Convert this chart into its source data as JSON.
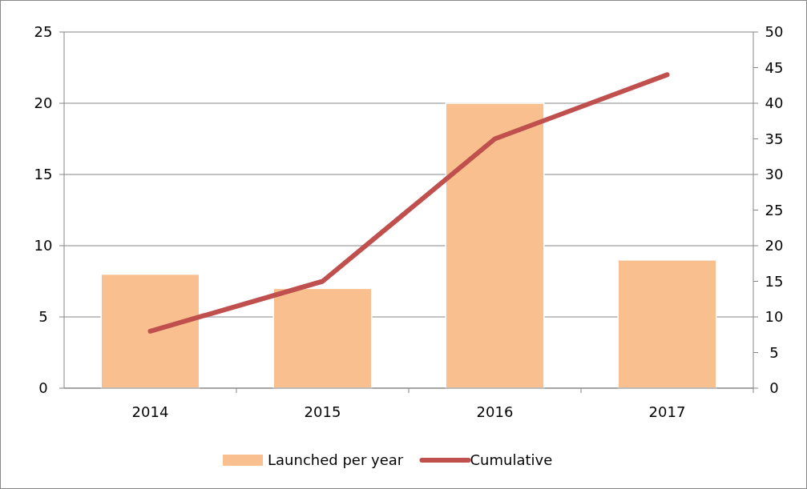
{
  "chart_data": {
    "type": "bar",
    "categories": [
      "2014",
      "2015",
      "2016",
      "2017"
    ],
    "series": [
      {
        "name": "Launched per year",
        "color": "#f9bf8f",
        "values": [
          8,
          7,
          20,
          9
        ]
      },
      {
        "name": "Cumulative",
        "type": "line",
        "axis": "y2",
        "color": "#c0504d",
        "values": [
          8,
          15,
          35,
          44
        ]
      }
    ],
    "ylim": [
      0,
      25
    ],
    "yticks": [
      0,
      5,
      10,
      15,
      20,
      25
    ],
    "y2lim": [
      0,
      50
    ],
    "y2ticks": [
      0,
      5,
      10,
      15,
      20,
      25,
      30,
      35,
      40,
      45,
      50
    ],
    "grid": "y",
    "legend": "bottom",
    "marker": "none",
    "line_style": "solid"
  }
}
